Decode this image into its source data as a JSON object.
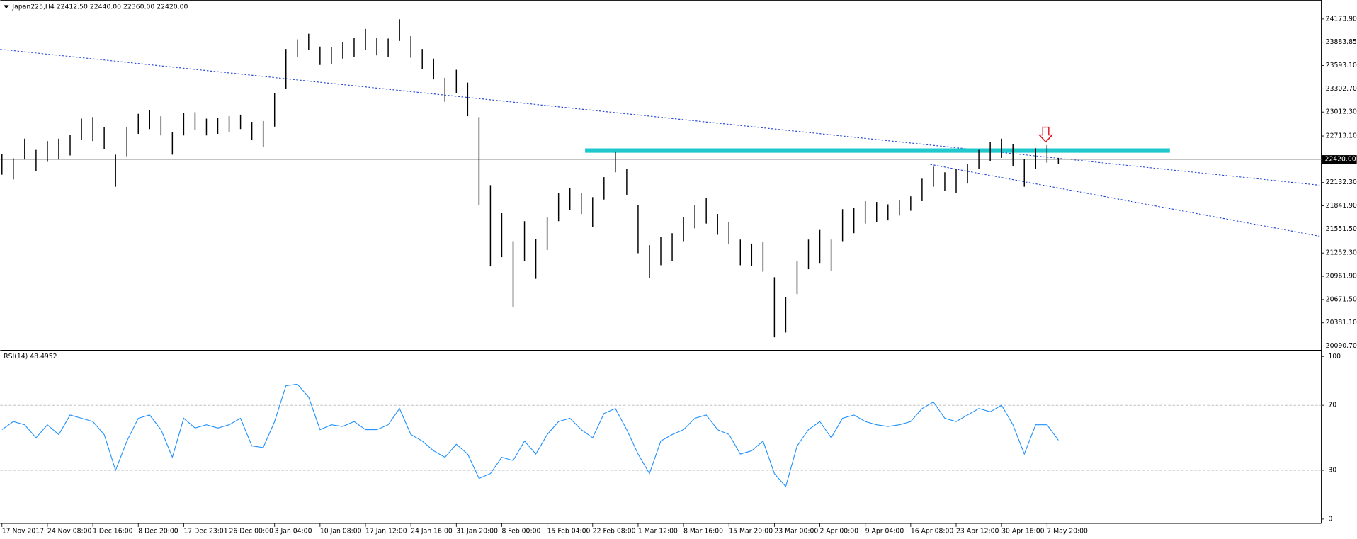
{
  "chart_data": {
    "type": "ohlc",
    "title": "Japan225,H4  22412.50 22440.00 22360.00 22420.00",
    "color": "#000000",
    "categories": [
      "17 Nov 2017",
      null,
      null,
      null,
      "24 Nov 08:00",
      null,
      null,
      null,
      "1 Dec 16:00",
      null,
      null,
      null,
      "8 Dec 20:00",
      null,
      null,
      null,
      "17 Dec 23:01",
      null,
      null,
      null,
      "26 Dec 00:00",
      null,
      null,
      null,
      "3 Jan 04:00",
      null,
      null,
      null,
      "10 Jan 08:00",
      null,
      null,
      null,
      "17 Jan 12:00",
      null,
      null,
      null,
      "24 Jan 16:00",
      null,
      null,
      null,
      "31 Jan 20:00",
      null,
      null,
      null,
      "8 Feb 00:00",
      null,
      null,
      null,
      "15 Feb 04:00",
      null,
      null,
      null,
      "22 Feb 08:00",
      null,
      null,
      null,
      "1 Mar 12:00",
      null,
      null,
      null,
      "8 Mar 16:00",
      null,
      null,
      null,
      "15 Mar 20:00",
      null,
      null,
      null,
      "23 Mar 00:00",
      null,
      null,
      null,
      "2 Apr 00:00",
      null,
      null,
      null,
      "9 Apr 04:00",
      null,
      null,
      null,
      "16 Apr 08:00",
      null,
      null,
      null,
      "23 Apr 12:00",
      null,
      null,
      null,
      "30 Apr 16:00",
      null,
      null,
      null,
      "7 May 20:00",
      null
    ],
    "high": [
      22490,
      22435,
      22680,
      22540,
      22650,
      22680,
      22730,
      22930,
      22950,
      22820,
      22480,
      22820,
      22990,
      23040,
      22960,
      22760,
      23000,
      23010,
      22930,
      22940,
      22960,
      22980,
      22890,
      22900,
      23250,
      23800,
      23920,
      23990,
      23830,
      23820,
      23890,
      23940,
      24050,
      23940,
      23930,
      24170,
      23960,
      23800,
      23680,
      23440,
      23540,
      23380,
      22950,
      22100,
      21750,
      21400,
      21650,
      21430,
      21700,
      22000,
      22060,
      22000,
      21950,
      22200,
      22520,
      22300,
      21850,
      21350,
      21450,
      21500,
      21700,
      21850,
      21940,
      21740,
      21640,
      21420,
      21370,
      21390,
      20950,
      20700,
      21150,
      21420,
      21540,
      21420,
      21800,
      21820,
      21900,
      21890,
      21860,
      21910,
      21960,
      22180,
      22330,
      22260,
      22300,
      22360,
      22540,
      22640,
      22680,
      22610,
      22430,
      22560,
      22600,
      22440
    ],
    "low": [
      22230,
      22170,
      22420,
      22280,
      22390,
      22420,
      22470,
      22660,
      22650,
      22550,
      22080,
      22460,
      22740,
      22800,
      22720,
      22480,
      22720,
      22790,
      22720,
      22740,
      22760,
      22800,
      22660,
      22575,
      22830,
      23300,
      23700,
      23790,
      23600,
      23610,
      23680,
      23700,
      23790,
      23720,
      23700,
      23900,
      23690,
      23550,
      23420,
      23140,
      23250,
      22960,
      21850,
      21085,
      21200,
      20580,
      21150,
      20930,
      21290,
      21650,
      21790,
      21740,
      21580,
      21920,
      22260,
      21980,
      21250,
      20940,
      21100,
      21150,
      21400,
      21560,
      21620,
      21480,
      21360,
      21100,
      21090,
      21020,
      20200,
      20260,
      20740,
      21050,
      21120,
      21030,
      21400,
      21500,
      21620,
      21640,
      21660,
      21720,
      21780,
      21900,
      22080,
      22030,
      22000,
      22120,
      22300,
      22400,
      22440,
      22340,
      22080,
      22300,
      22380,
      22360
    ],
    "ylim": [
      20047,
      24390
    ],
    "yticks": [
      {
        "value": 24173.9,
        "label": "24173.90"
      },
      {
        "value": 23883.85,
        "label": "23883.85"
      },
      {
        "value": 23593.1,
        "label": "23593.10"
      },
      {
        "value": 23302.7,
        "label": "23302.70"
      },
      {
        "value": 23012.3,
        "label": "23012.30"
      },
      {
        "value": 22713.1,
        "label": "22713.10"
      },
      {
        "value": 22132.3,
        "label": "22132.30"
      },
      {
        "value": 21841.9,
        "label": "21841.90"
      },
      {
        "value": 21551.5,
        "label": "21551.50"
      },
      {
        "value": 21252.3,
        "label": "21252.30"
      },
      {
        "value": 20961.9,
        "label": "20961.90"
      },
      {
        "value": 20671.5,
        "label": "20671.50"
      },
      {
        "value": 20381.1,
        "label": "20381.10"
      },
      {
        "value": 20090.7,
        "label": "20090.70"
      }
    ],
    "last_price": {
      "value": 22420,
      "label": "22420.00"
    },
    "indicator": {
      "type": "line",
      "title": "RSI(14) 48.4952",
      "color": "#1e90ff",
      "values": [
        55,
        60,
        58,
        50,
        58,
        52,
        64,
        62,
        60,
        52,
        30,
        48,
        62,
        64,
        55,
        38,
        62,
        56,
        58,
        56,
        58,
        62,
        45,
        44,
        60,
        82,
        83,
        75,
        55,
        58,
        57,
        60,
        55,
        55,
        58,
        68,
        52,
        48,
        42,
        38,
        46,
        40,
        25,
        28,
        38,
        36,
        48,
        40,
        52,
        60,
        62,
        55,
        50,
        65,
        68,
        55,
        40,
        28,
        48,
        52,
        55,
        62,
        64,
        55,
        52,
        40,
        42,
        48,
        28,
        20,
        45,
        55,
        60,
        50,
        62,
        64,
        60,
        58,
        57,
        58,
        60,
        68,
        72,
        62,
        60,
        64,
        68,
        66,
        70,
        58,
        40,
        58,
        58,
        48.4952
      ],
      "ylim": [
        0,
        100
      ],
      "yticks": [
        0,
        30,
        70,
        100
      ]
    }
  }
}
